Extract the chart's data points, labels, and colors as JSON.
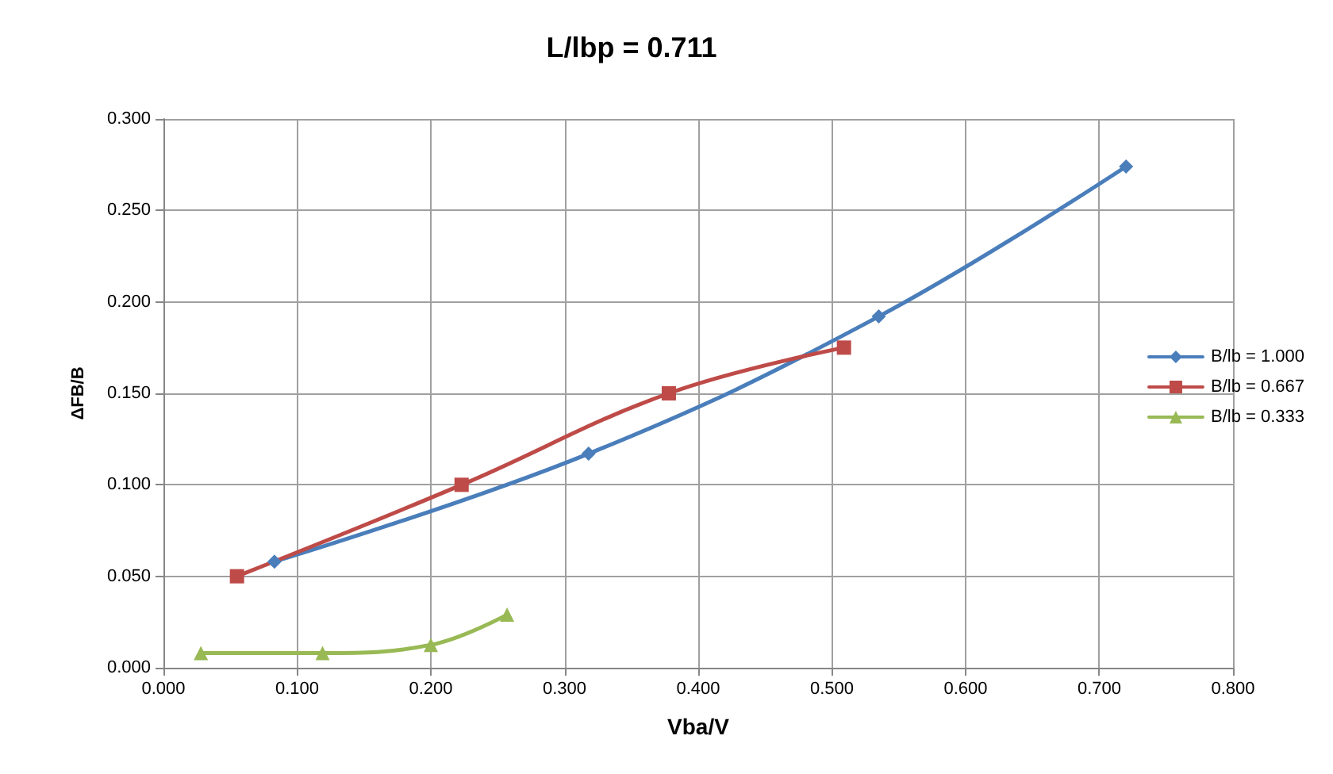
{
  "chart_data": {
    "type": "line",
    "title": "L/lbp = 0.711",
    "xlabel": "Vba/V",
    "ylabel": "ΔFB/B",
    "xlim": [
      0,
      0.8
    ],
    "xticks": [
      {
        "value": 0,
        "label": "0.000"
      },
      {
        "value": 0.1,
        "label": "0.100"
      },
      {
        "value": 0.2,
        "label": "0.200"
      },
      {
        "value": 0.3,
        "label": "0.300"
      },
      {
        "value": 0.4,
        "label": "0.400"
      },
      {
        "value": 0.5,
        "label": "0.500"
      },
      {
        "value": 0.6,
        "label": "0.600"
      },
      {
        "value": 0.7,
        "label": "0.700"
      },
      {
        "value": 0.8,
        "label": "0.800"
      }
    ],
    "ylim": [
      0,
      0.3
    ],
    "yticks": [
      {
        "value": 0,
        "label": "0.000"
      },
      {
        "value": 0.05,
        "label": "0.050"
      },
      {
        "value": 0.1,
        "label": "0.100"
      },
      {
        "value": 0.15,
        "label": "0.150"
      },
      {
        "value": 0.2,
        "label": "0.200"
      },
      {
        "value": 0.25,
        "label": "0.250"
      },
      {
        "value": 0.3,
        "label": "0.300"
      }
    ],
    "grid": true,
    "legend": "right",
    "series": [
      {
        "name": "B/lb = 1.000",
        "color": "#4a7ebb",
        "marker": "diamond",
        "x": [
          0.083,
          0.318,
          0.535,
          0.72
        ],
        "values": [
          0.058,
          0.117,
          0.192,
          0.274
        ]
      },
      {
        "name": "B/lb = 0.667",
        "color": "#be4b48",
        "marker": "square",
        "x": [
          0.055,
          0.223,
          0.378,
          0.509
        ],
        "values": [
          0.05,
          0.1,
          0.15,
          0.175
        ]
      },
      {
        "name": "B/lb = 0.333",
        "color": "#98b954",
        "marker": "triangle",
        "x": [
          0.028,
          0.119,
          0.2,
          0.257
        ],
        "values": [
          0.008,
          0.008,
          0.0125,
          0.029
        ]
      }
    ]
  }
}
